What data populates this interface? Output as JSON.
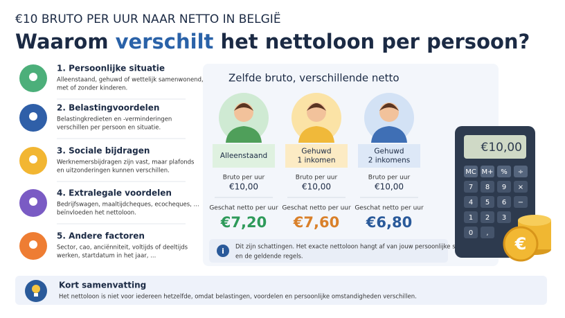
{
  "header": {
    "kicker": "€10 BRUTO PER UUR NAAR NETTO IN BELGIË",
    "title": [
      "Waarom",
      "verschilt",
      "het nettoloon per persoon?"
    ]
  },
  "factors": [
    {
      "title": "1. Persoonlijke situatie",
      "text": [
        "Alleenstaand, gehuwd of wettelijk samenwonend,",
        "met of zonder kinderen."
      ]
    },
    {
      "title": "2. Belastingvoordelen",
      "text": [
        "Belastingkredieten en -verminderingen",
        "verschillen per persoon en situatie."
      ]
    },
    {
      "title": "3. Sociale bijdragen",
      "text": [
        "Werknemersbijdragen zijn vast, maar plafonds",
        "en uitzonderingen kunnen verschillen."
      ]
    },
    {
      "title": "4. Extralegale voordelen",
      "text": [
        "Bedrijfswagen, maaltijdcheques, ecocheques, ...",
        "beïnvloeden het nettoloon."
      ]
    },
    {
      "title": "5. Andere factoren",
      "text": [
        "Sector, cao, anciënniteit, voltijds of deeltijds",
        "werken, startdatum in het jaar, ..."
      ]
    }
  ],
  "comparison": {
    "title": "Zelfde bruto, verschillende netto",
    "columns": [
      {
        "label": [
          "Alleenstaand"
        ],
        "bruto_label": "Bruto per uur",
        "bruto": "€10,00",
        "netto_label": "Geschat netto per uur",
        "netto": "€7,20"
      },
      {
        "label": [
          "Gehuwd",
          "1 inkomen"
        ],
        "bruto_label": "Bruto per uur",
        "bruto": "€10,00",
        "netto_label": "Geschat netto per uur",
        "netto": "€7,60"
      },
      {
        "label": [
          "Gehuwd",
          "2 inkomens"
        ],
        "bruto_label": "Bruto per uur",
        "bruto": "€10,00",
        "netto_label": "Geschat netto per uur",
        "netto": "€6,80"
      }
    ],
    "note": [
      "Dit zijn schattingen. Het exacte nettoloon hangt af van jouw persoonlijke situatie",
      "en de geldende regels."
    ]
  },
  "calculator": {
    "display": "€10,00",
    "keys": [
      [
        "MC",
        "M+",
        "%",
        "÷"
      ],
      [
        "7",
        "8",
        "9",
        "×"
      ],
      [
        "4",
        "5",
        "6",
        "−"
      ],
      [
        "1",
        "2",
        "3"
      ],
      [
        "0",
        ","
      ]
    ],
    "coin": "€"
  },
  "summary": {
    "title": "Kort samenvatting",
    "text": "Het nettoloon is niet voor iedereen hetzelfde, omdat belastingen, voordelen en persoonlijke omstandigheden verschillen."
  }
}
